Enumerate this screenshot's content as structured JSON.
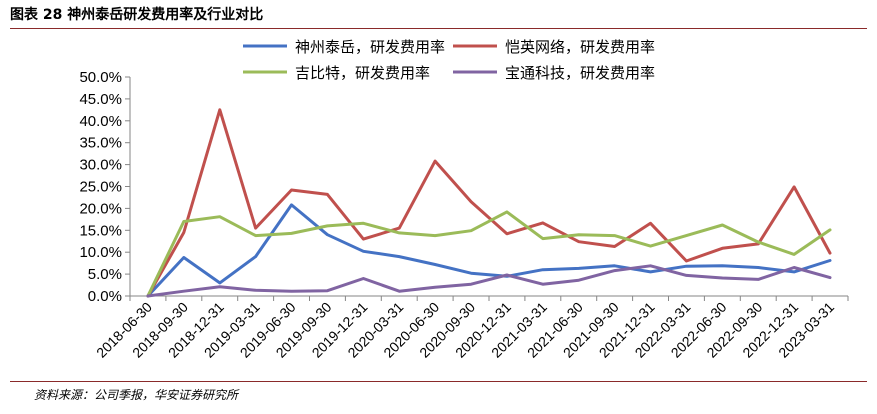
{
  "figure": {
    "title": "图表 28 神州泰岳研发费用率及行业对比",
    "source": "资料来源：公司季报，华安证券研究所"
  },
  "colors": {
    "shenzhou": "#4472C4",
    "kaiying": "#C0504D",
    "jibite": "#9BBB59",
    "baotong": "#8064A2",
    "axis": "#868686",
    "accent_rule": "#8a2a2a"
  },
  "chart_data": {
    "type": "line",
    "title": "",
    "xlabel": "",
    "ylabel": "",
    "ylim": [
      0,
      50
    ],
    "yticks": [
      "0.0%",
      "5.0%",
      "10.0%",
      "15.0%",
      "20.0%",
      "25.0%",
      "30.0%",
      "35.0%",
      "40.0%",
      "45.0%",
      "50.0%"
    ],
    "value_unit": "%",
    "grid": false,
    "legend_position": "top",
    "categories": [
      "2018-06-30",
      "2018-09-30",
      "2018-12-31",
      "2019-03-31",
      "2019-06-30",
      "2019-09-30",
      "2019-12-31",
      "2020-03-31",
      "2020-06-30",
      "2020-09-30",
      "2020-12-31",
      "2021-03-31",
      "2021-06-30",
      "2021-09-30",
      "2021-12-31",
      "2022-03-31",
      "2022-06-30",
      "2022-09-30",
      "2022-12-31",
      "2023-03-31"
    ],
    "series": [
      {
        "key": "shenzhou",
        "name": "神州泰岳，研发费用率",
        "values": [
          0.0,
          8.8,
          3.0,
          9.0,
          20.8,
          14.0,
          10.2,
          9.0,
          7.2,
          5.2,
          4.5,
          6.0,
          6.3,
          6.9,
          5.5,
          6.8,
          6.9,
          6.5,
          5.5,
          8.1
        ]
      },
      {
        "key": "kaiying",
        "name": "恺英网络，研发费用率",
        "values": [
          0.0,
          14.5,
          42.5,
          15.5,
          24.2,
          23.2,
          13.0,
          15.5,
          30.8,
          21.5,
          14.2,
          16.7,
          12.4,
          11.3,
          16.6,
          8.0,
          10.9,
          11.9,
          24.9,
          9.8
        ]
      },
      {
        "key": "jibite",
        "name": "吉比特，研发费用率",
        "values": [
          0.0,
          17.0,
          18.1,
          13.8,
          14.3,
          16.0,
          16.6,
          14.4,
          13.8,
          14.9,
          19.2,
          13.1,
          14.0,
          13.8,
          11.4,
          13.8,
          16.2,
          12.3,
          9.5,
          15.1
        ]
      },
      {
        "key": "baotong",
        "name": "宝通科技，研发费用率",
        "values": [
          0.0,
          1.1,
          2.1,
          1.3,
          1.1,
          1.2,
          4.0,
          1.1,
          2.0,
          2.7,
          4.8,
          2.7,
          3.6,
          5.8,
          6.9,
          4.7,
          4.1,
          3.8,
          6.5,
          4.2
        ]
      }
    ]
  }
}
